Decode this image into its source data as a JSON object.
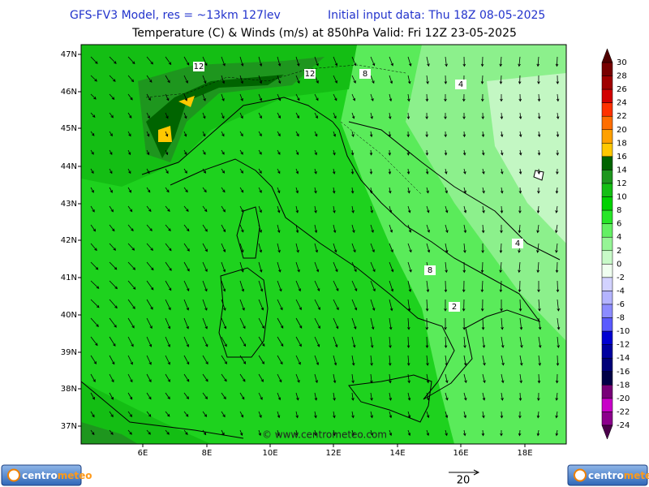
{
  "header": {
    "model": "GFS-FV3 Model, res = ~13km 127lev",
    "init": "Initial input data: Thu 18Z 08-05-2025",
    "field": "Temperature (C) & Winds (m/s) at 850hPa  Valid: Fri 12Z 23-05-2025"
  },
  "map": {
    "lat_labels": [
      "47N",
      "46N",
      "45N",
      "44N",
      "43N",
      "42N",
      "41N",
      "40N",
      "39N",
      "38N",
      "37N"
    ],
    "lon_labels": [
      "6E",
      "8E",
      "10E",
      "12E",
      "14E",
      "16E",
      "18E"
    ],
    "contour_labels": [
      12,
      12,
      8,
      4,
      4,
      8,
      2
    ],
    "watermark": "© www.centrometeo.com"
  },
  "colorbar": {
    "values": [
      30,
      28,
      26,
      24,
      22,
      20,
      18,
      16,
      14,
      12,
      10,
      8,
      6,
      4,
      2,
      0,
      -2,
      -4,
      -6,
      -8,
      -10,
      -12,
      -14,
      -16,
      -18,
      -20,
      -22,
      -24
    ],
    "colors": [
      "#780000",
      "#a00000",
      "#d20000",
      "#ff3200",
      "#ff6e00",
      "#ffa000",
      "#ffc800",
      "#006400",
      "#1e961e",
      "#14be14",
      "#00d200",
      "#28e628",
      "#64f064",
      "#96f596",
      "#c8fac8",
      "#f0fff0",
      "#d2d2ff",
      "#b4b4ff",
      "#8c8cff",
      "#5a5aff",
      "#0000d2",
      "#0000a0",
      "#000078",
      "#000046",
      "#780078",
      "#c800c8",
      "#8c008c"
    ],
    "over_color": "#500000",
    "under_color": "#4b004b"
  },
  "wind_scale": {
    "value": 20
  },
  "logos": [
    [
      "centro",
      "meteo"
    ],
    [
      "centro",
      "meteo"
    ]
  ]
}
